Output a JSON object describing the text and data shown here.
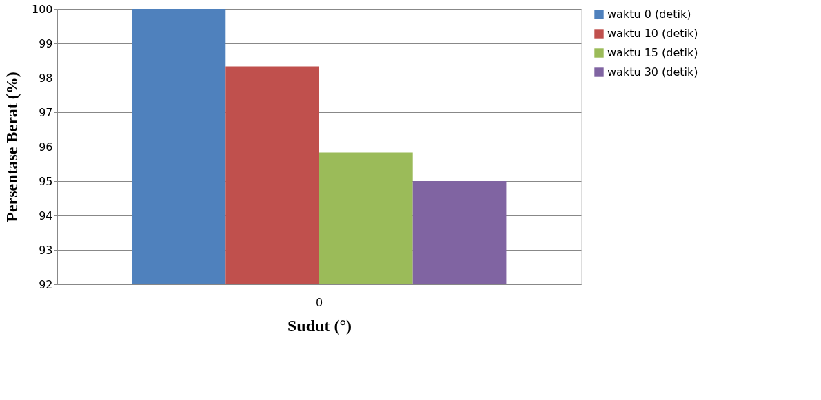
{
  "chart_data": {
    "type": "bar",
    "xlabel": "Sudut (°)",
    "ylabel": "Persentase Berat (%)",
    "categories": [
      "0"
    ],
    "series": [
      {
        "name": "waktu 0 (detik)",
        "color": "#4f81bd",
        "values": [
          100
        ]
      },
      {
        "name": "waktu 10 (detik)",
        "color": "#c0504d",
        "values": [
          98.33
        ]
      },
      {
        "name": "waktu 15 (detik)",
        "color": "#9bbb59",
        "values": [
          95.83
        ]
      },
      {
        "name": "waktu 30 (detik)",
        "color": "#8064a2",
        "values": [
          95.0
        ]
      }
    ],
    "ylim": [
      92,
      100
    ],
    "yticks": [
      92,
      93,
      94,
      95,
      96,
      97,
      98,
      99,
      100
    ],
    "grid": "y",
    "legend": "right"
  }
}
